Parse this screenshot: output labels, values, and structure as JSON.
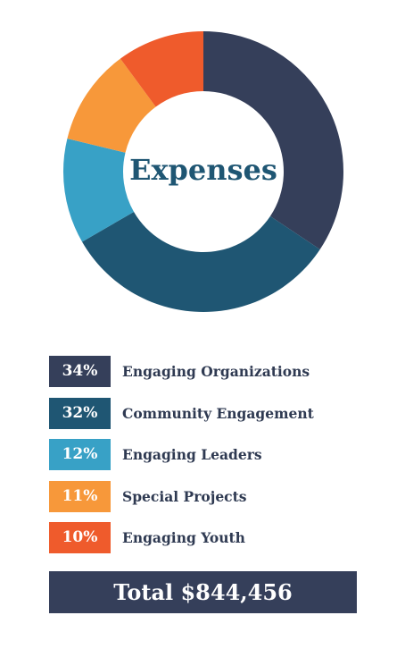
{
  "chart_data": {
    "type": "pie",
    "title": "Expenses",
    "categories": [
      "Engaging Organizations",
      "Community Engagement",
      "Engaging Leaders",
      "Special Projects",
      "Engaging Youth"
    ],
    "values": [
      34,
      32,
      12,
      11,
      10
    ],
    "percent_labels": [
      "34%",
      "32%",
      "12%",
      "11%",
      "10%"
    ],
    "colors": [
      "#353f5a",
      "#1f5673",
      "#38a1c6",
      "#f7983a",
      "#ef5b2c"
    ],
    "donut": true,
    "start_angle_deg": 0,
    "legend_placement": "bottom"
  },
  "total_label": "Total $844,456"
}
